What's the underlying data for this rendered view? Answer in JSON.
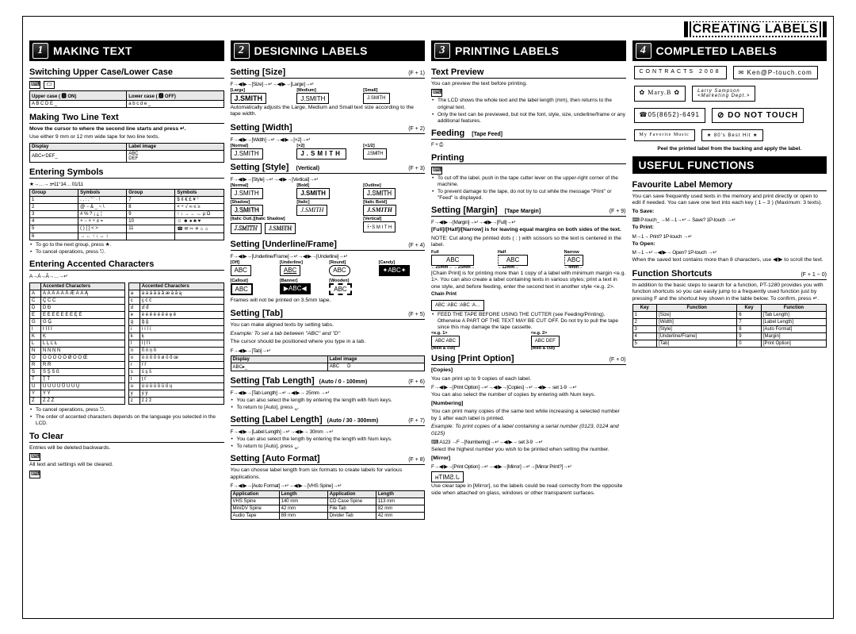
{
  "header_title": "CREATING LABELS",
  "steps": [
    {
      "num": "1",
      "title": "MAKING TEXT"
    },
    {
      "num": "2",
      "title": "DESIGNING LABELS"
    },
    {
      "num": "3",
      "title": "PRINTING LABELS"
    },
    {
      "num": "4",
      "title": "COMPLETED LABELS"
    }
  ],
  "useful_title": "USEFUL FUNCTIONS",
  "col1": {
    "s1": {
      "h": "Switching Upper Case/Lower Case",
      "upper_lbl": "Upper case ( 🅰 ON)",
      "lower_lbl": "Lower case ( 🅰 OFF)",
      "upper_sample": "A B C D E _",
      "lower_sample": "a b c d e _"
    },
    "s2": {
      "h": "Making Two Line Text",
      "instr": "Move the cursor to where the second line starts and press ↵.",
      "note": "Use either 9 mm or 12 mm wide tape for two line texts.",
      "disp_lbl": "Display",
      "img_lbl": "Label image",
      "disp_sample": "ABC↵DEF_",
      "img_sample": "ABC\nDEF"
    },
    "s3": {
      "h": "Entering Symbols",
      "seq": "★→…→ ±•11°14… 01/11",
      "headers": [
        "Group",
        "Symbols",
        "Group",
        "Symbols"
      ],
      "rows": [
        [
          "1",
          ". , : ; \" ' · !",
          "7",
          "$ ¢ € £ ¥ °"
        ],
        [
          "2",
          "@ − & _ ~ \\",
          "8",
          "× ÷ √ ∞ ≤ ≥"
        ],
        [
          "3",
          "# % ? ¡ ¿ ¦",
          "9",
          "↑ ↓ → ← ↔ µ Ω"
        ],
        [
          "4",
          "+ − × ÷ ± =",
          "10",
          "☺ ☻ ♠ ♣ ♥"
        ],
        [
          "5",
          "( ) [ ] < >",
          "11",
          "☎ ✉ ✂ ✈ ⌂ ☼"
        ],
        [
          "6",
          "→ ← ↑ ↓ ↔ ↕",
          "",
          ""
        ]
      ],
      "bullets": [
        "To go to the next group, press ★.",
        "To cancel operations, press ⎋."
      ]
    },
    "s4": {
      "h": "Entering Accented Characters",
      "seq": "A→Á→Ã→…→↵",
      "headers": [
        "",
        "Accented Characters",
        "",
        "Accented Characters"
      ],
      "rows": [
        [
          "A",
          "À Á Â Ã Ä Å Æ Ā Ă Ą",
          "a",
          "à á â ã ä å æ ā ă ą"
        ],
        [
          "C",
          "Ç Ć Č",
          "c",
          "ç ć č"
        ],
        [
          "D",
          "Ď Đ",
          "d",
          "ď đ"
        ],
        [
          "E",
          "È É Ê Ë Ē Ĕ Ė Ę Ě",
          "e",
          "è é ê ë ē ĕ ė ę ě"
        ],
        [
          "G",
          "Ğ Ģ",
          "g",
          "ğ ģ"
        ],
        [
          "I",
          "Ì Í Î Ï",
          "i",
          "ì í î ï"
        ],
        [
          "K",
          "Ķ",
          "k",
          "ķ"
        ],
        [
          "L",
          "Ĺ Ļ Ľ Ł",
          "l",
          "ĺ ļ ľ ł"
        ],
        [
          "N",
          "Ñ Ń Ņ Ň",
          "n",
          "ñ ń ņ ň"
        ],
        [
          "O",
          "Ò Ó Ô Õ Ö Ø Ō Ő Œ",
          "o",
          "ò ó ô õ ö ø ō ő œ"
        ],
        [
          "R",
          "Ŕ Ř",
          "r",
          "ŕ ř"
        ],
        [
          "S",
          "Ś Ş Š ß",
          "s",
          "ś ş š"
        ],
        [
          "T",
          "Ţ Ť",
          "t",
          "ţ ť"
        ],
        [
          "U",
          "Ù Ú Û Ü Ů Ū Ű Ų",
          "u",
          "ù ú û ü ů ū ű ų"
        ],
        [
          "Y",
          "Ý Ÿ",
          "y",
          "ý ÿ"
        ],
        [
          "Z",
          "Ź Ż Ž",
          "z",
          "ź ż ž"
        ]
      ],
      "bullets": [
        "To cancel operations, press ⎋.",
        "The order of accented characters depends on the language you selected in the LCD."
      ]
    },
    "s5": {
      "h": "To Clear",
      "n1": "Entries will be deleted backwards.",
      "n2": "All text and settings will be cleared."
    }
  },
  "col2": {
    "size": {
      "h": "Setting [Size]",
      "key": "(F + 1)",
      "caps": [
        "[Large]",
        "[Medium]",
        "[Small]"
      ],
      "note": "Automatically adjusts the Large, Medium and Small text size according to the tape width.",
      "samp": "J.SMITH"
    },
    "width": {
      "h": "Setting [Width]",
      "key": "(F + 2)",
      "caps": [
        "[Normal]",
        "[×2]",
        "[×1/2]"
      ],
      "samp": "J.SMITH"
    },
    "style": {
      "h": "Setting [Style]",
      "sub": "(Vertical)",
      "key": "(F + 3)",
      "caps": [
        "[Normal]",
        "[Bold]",
        "[Outline]",
        "[Shadow]",
        "[Italic]",
        "[Italic Bold]",
        "[Italic Outl.][Italic Shadow]",
        "[Vertical]"
      ],
      "samp": "J.SMITH",
      "vert": "ﾃ･S M I T H"
    },
    "uf": {
      "h": "Setting [Underline/Frame]",
      "key": "(F + 4)",
      "caps": [
        "[Off]",
        "[Underline]",
        "[Round]",
        "[Candy]",
        "[Callout]",
        "[Banner]",
        "[Wooden]"
      ],
      "samp": "ABC",
      "note": "Frames will not be printed on 3.5mm tape."
    },
    "tab": {
      "h": "Setting [Tab]",
      "key": "(F + 5)",
      "body": "You can make aligned texts by setting tabs.",
      "ex": "Example: To set a tab between \"ABC\" and \"D\"",
      "cur": "The cursor should be positioned where you type in a tab.",
      "disp_lbl": "Display",
      "img_lbl": "Label image",
      "disp": "ABC▸_",
      "img": "ABC      D"
    },
    "tablen": {
      "h": "Setting [Tab Length]",
      "sub": "(Auto / 0 - 100mm)",
      "key": "(F + 6)",
      "bullets": [
        "You can also select the length by entering the length with Num keys.",
        "To return to [Auto], press ␣."
      ]
    },
    "lablen": {
      "h": "Setting [Label Length]",
      "sub": "(Auto / 30 - 300mm)",
      "key": "(F + 7)",
      "bullets": [
        "You can also select the length by entering the length with Num keys.",
        "To return to [Auto], press ␣."
      ]
    },
    "af": {
      "h": "Setting [Auto Format]",
      "key": "(F + 8)",
      "body": "You can choose label length from six formats to create labels for various applications.",
      "headers": [
        "Application",
        "Length",
        "Application",
        "Length"
      ],
      "rows": [
        [
          "VHS Spine",
          "140 mm",
          "CD Case Spine",
          "113 mm"
        ],
        [
          "MiniDV Spine",
          "42 mm",
          "File Tab",
          "82 mm"
        ],
        [
          "Audio Tape",
          "89 mm",
          "Divider Tab",
          "42 mm"
        ]
      ]
    }
  },
  "col3": {
    "preview": {
      "h": "Text Preview",
      "body": "You can preview the text before printing.",
      "bullets": [
        "The LCD shows the whole text and the label length (mm), then returns to the original text.",
        "Only the text can be previewed, but not the font, style, size, underline/frame or any additional features."
      ]
    },
    "feed": {
      "h": "Feeding",
      "sub": "[Tape Feed]"
    },
    "print": {
      "h": "Printing",
      "bullets": [
        "To cut off the label, push in the tape cutter lever on the upper-right corner of the machine.",
        "To prevent damage to the tape, do not try to cut while the message \"Print\" or \"Feed\" is displayed."
      ]
    },
    "margin": {
      "h": "Setting [Margin]",
      "sub": "[Tape Margin]",
      "key": "(F + 9)",
      "l1": "[Full]/[Half]/[Narrow] is for leaving equal margins on both sides of the text.",
      "note": "NOTE: Cut along the printed dots ( : ) with scissors so the text is centered in the label.",
      "caps": [
        "Full",
        "Half",
        "Narrow"
      ],
      "dims": [
        "←25mm→ ←25mm→",
        "←12mm→",
        "←4mm→"
      ],
      "samp": "ABC",
      "chain": "[Chain Print] is for printing more than 1 copy of a label with minimum margin <e.g. 1>. You can also create a label containing texts in various styles; print a text in one style, and before feeding, enter the second text in another style <e.g. 2>.",
      "feedwarn": "FEED THE TAPE BEFORE USING THE CUTTER (see Feeding/Printing). Otherwise A PART OF THE TEXT MAY BE CUT OFF. Do not try to pull the tape since this may damage the tape cassette.",
      "eg1": "<e.g. 1>",
      "eg2": "<e.g. 2>",
      "fc": "(feed & cut)"
    },
    "popt": {
      "h": "Using [Print Option]",
      "key": "(F + 0)",
      "copies": "[Copies]",
      "c1": "You can print up to 9 copies of each label.",
      "c2": "You can also select the number of copies by entering with Num keys.",
      "num": "[Numbering]",
      "n1": "You can print many copies of the same text while increasing a selected number by 1 after each label is printed.",
      "n2": "Example: To print copies of a label containing a serial number (0123, 0124 and 0125)",
      "n3": "Select the highest number you wish to be printed when setting the number.",
      "mir": "[Mirror]",
      "m1": "Use clear tape in [Mirror], so the labels could be read correctly from the opposite side when attached on glass, windows or other transparent surfaces.",
      "mirs": "ʜTIMƧ.ᒐ"
    }
  },
  "col4": {
    "completed": {
      "items": [
        "CONTRACTS 2008",
        "✉ Ken@P-touch.com",
        "✿ Mary.B ✿",
        "Larry Sampson\n<Marketing Dept.>",
        "☎05(8652)-6491",
        "⊘ DO NOT TOUCH",
        "My Favorite Music",
        "★ 80's Best Hit ★"
      ],
      "peel": "Peel the printed label from the backing and apply the label."
    },
    "fav": {
      "h": "Favourite Label Memory",
      "body": "You can save frequently used texts in the memory and print directly or open to edit if needed. You can save one text into each key ( 1 – 3 ) (Maximum: 3 texts).",
      "save": "To Save:",
      "print": "To Print:",
      "open": "To Open:",
      "note": "When the saved text contains more than 8 characters, use ◀/▶ to scroll the text."
    },
    "short": {
      "h": "Function Shortcuts",
      "key": "(F + 1 ~ 0)",
      "body": "In addition to the basic steps to search for a function, PT-1280 provides you with function shortcuts so you can easily jump to a frequently used function just by pressing F and the shortcut key shown in the table below. To confirm, press ↵.",
      "headers": [
        "Key",
        "Function",
        "Key",
        "Function"
      ],
      "rows": [
        [
          "1",
          "[Size]",
          "6",
          "[Tab Length]"
        ],
        [
          "2",
          "[Width]",
          "7",
          "[Label Length]"
        ],
        [
          "3",
          "[Style]",
          "8",
          "[Auto Format]"
        ],
        [
          "4",
          "[Underline/Frame]",
          "9",
          "[Margin]"
        ],
        [
          "5",
          "[Tab]",
          "0",
          "[Print Option]"
        ]
      ]
    }
  }
}
